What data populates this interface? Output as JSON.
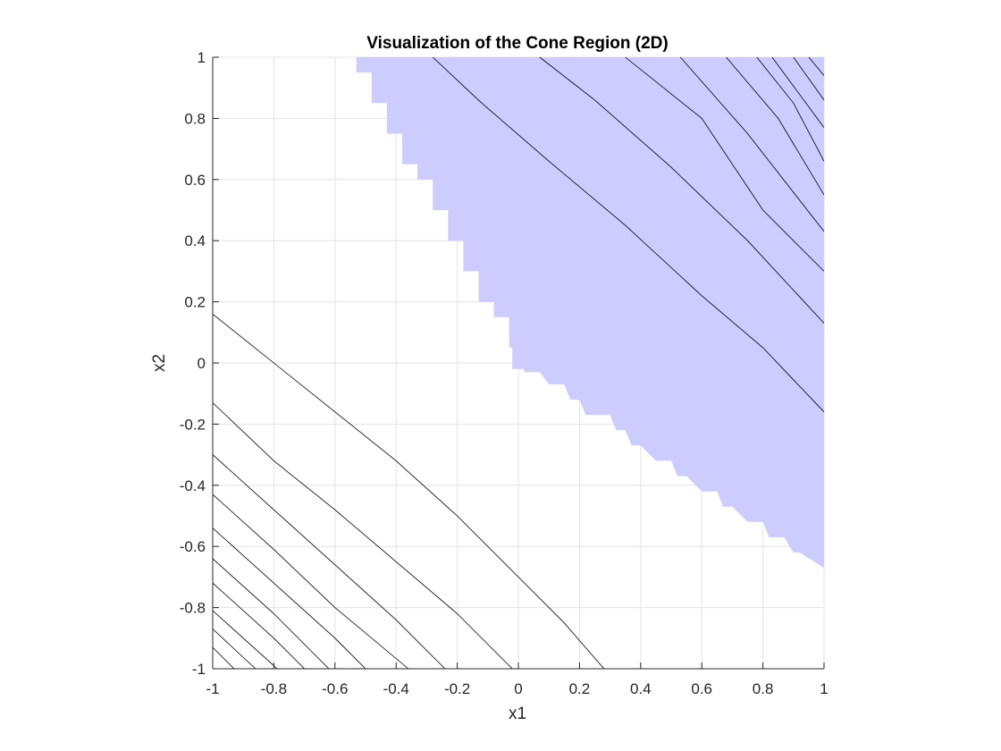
{
  "chart_data": {
    "type": "contour",
    "title": "Visualization of the Cone Region (2D)",
    "xlabel": "x1",
    "ylabel": "x2",
    "xlim": [
      -1,
      1
    ],
    "ylim": [
      -1,
      1
    ],
    "xticks": [
      -1,
      -0.8,
      -0.6,
      -0.4,
      -0.2,
      0,
      0.2,
      0.4,
      0.6,
      0.8,
      1
    ],
    "yticks": [
      -1,
      -0.8,
      -0.6,
      -0.4,
      -0.2,
      0,
      0.2,
      0.4,
      0.6,
      0.8,
      1
    ],
    "xtick_labels": [
      "-1",
      "-0.8",
      "-0.6",
      "-0.4",
      "-0.2",
      "0",
      "0.2",
      "0.4",
      "0.6",
      "0.8",
      "1"
    ],
    "ytick_labels": [
      "-1",
      "-0.8",
      "-0.6",
      "-0.4",
      "-0.2",
      "0",
      "0.2",
      "0.4",
      "0.6",
      "0.8",
      "1"
    ],
    "grid": true,
    "region_color": "#ccccff",
    "line_color": "#000000",
    "region_boundary": [
      [
        -0.53,
        1
      ],
      [
        -0.53,
        0.95
      ],
      [
        -0.48,
        0.95
      ],
      [
        -0.48,
        0.85
      ],
      [
        -0.43,
        0.85
      ],
      [
        -0.43,
        0.75
      ],
      [
        -0.38,
        0.75
      ],
      [
        -0.38,
        0.65
      ],
      [
        -0.33,
        0.65
      ],
      [
        -0.33,
        0.6
      ],
      [
        -0.28,
        0.6
      ],
      [
        -0.28,
        0.5
      ],
      [
        -0.23,
        0.5
      ],
      [
        -0.23,
        0.4
      ],
      [
        -0.18,
        0.4
      ],
      [
        -0.18,
        0.3
      ],
      [
        -0.13,
        0.3
      ],
      [
        -0.13,
        0.2
      ],
      [
        -0.08,
        0.2
      ],
      [
        -0.08,
        0.15
      ],
      [
        -0.03,
        0.15
      ],
      [
        -0.03,
        0.05
      ],
      [
        -0.02,
        0.05
      ],
      [
        -0.02,
        -0.02
      ],
      [
        0.02,
        -0.02
      ],
      [
        0.02,
        -0.03
      ],
      [
        0.07,
        -0.03
      ],
      [
        0.1,
        -0.07
      ],
      [
        0.15,
        -0.07
      ],
      [
        0.17,
        -0.12
      ],
      [
        0.2,
        -0.12
      ],
      [
        0.22,
        -0.17
      ],
      [
        0.3,
        -0.17
      ],
      [
        0.32,
        -0.22
      ],
      [
        0.35,
        -0.22
      ],
      [
        0.37,
        -0.27
      ],
      [
        0.4,
        -0.27
      ],
      [
        0.45,
        -0.32
      ],
      [
        0.5,
        -0.32
      ],
      [
        0.52,
        -0.37
      ],
      [
        0.55,
        -0.37
      ],
      [
        0.6,
        -0.42
      ],
      [
        0.65,
        -0.42
      ],
      [
        0.67,
        -0.47
      ],
      [
        0.7,
        -0.47
      ],
      [
        0.75,
        -0.52
      ],
      [
        0.8,
        -0.52
      ],
      [
        0.82,
        -0.57
      ],
      [
        0.87,
        -0.57
      ],
      [
        0.9,
        -0.62
      ],
      [
        0.92,
        -0.62
      ],
      [
        1,
        -0.67
      ],
      [
        1,
        1
      ]
    ],
    "contour_lines": [
      [
        [
          -0.28,
          1
        ],
        [
          -0.12,
          0.85
        ],
        [
          0.1,
          0.66
        ],
        [
          0.35,
          0.45
        ],
        [
          0.6,
          0.22
        ],
        [
          0.8,
          0.05
        ],
        [
          1,
          -0.16
        ]
      ],
      [
        [
          0.07,
          1
        ],
        [
          0.25,
          0.86
        ],
        [
          0.5,
          0.64
        ],
        [
          0.75,
          0.4
        ],
        [
          1,
          0.13
        ]
      ],
      [
        [
          0.35,
          1
        ],
        [
          0.6,
          0.8
        ],
        [
          0.8,
          0.5
        ],
        [
          1,
          0.3
        ]
      ],
      [
        [
          0.53,
          1
        ],
        [
          0.75,
          0.75
        ],
        [
          1,
          0.43
        ]
      ],
      [
        [
          0.68,
          1
        ],
        [
          0.85,
          0.8
        ],
        [
          1,
          0.55
        ]
      ],
      [
        [
          0.78,
          1
        ],
        [
          0.9,
          0.85
        ],
        [
          1,
          0.66
        ]
      ],
      [
        [
          0.83,
          1
        ],
        [
          1,
          0.77
        ]
      ],
      [
        [
          0.9,
          1
        ],
        [
          1,
          0.86
        ]
      ],
      [
        [
          0.95,
          1
        ],
        [
          1,
          0.94
        ]
      ],
      [
        [
          -1,
          0.16
        ],
        [
          -0.8,
          0.0
        ],
        [
          -0.6,
          -0.16
        ],
        [
          -0.4,
          -0.32
        ],
        [
          -0.2,
          -0.5
        ],
        [
          0,
          -0.7
        ],
        [
          0.15,
          -0.85
        ],
        [
          0.28,
          -1
        ]
      ],
      [
        [
          -1,
          -0.13
        ],
        [
          -0.8,
          -0.32
        ],
        [
          -0.6,
          -0.48
        ],
        [
          -0.4,
          -0.65
        ],
        [
          -0.2,
          -0.82
        ],
        [
          -0.02,
          -1
        ]
      ],
      [
        [
          -1,
          -0.3
        ],
        [
          -0.8,
          -0.48
        ],
        [
          -0.6,
          -0.66
        ],
        [
          -0.4,
          -0.84
        ],
        [
          -0.24,
          -1
        ]
      ],
      [
        [
          -1,
          -0.43
        ],
        [
          -0.8,
          -0.61
        ],
        [
          -0.6,
          -0.8
        ],
        [
          -0.36,
          -1
        ]
      ],
      [
        [
          -1,
          -0.54
        ],
        [
          -0.8,
          -0.72
        ],
        [
          -0.6,
          -0.9
        ],
        [
          -0.5,
          -1
        ]
      ],
      [
        [
          -1,
          -0.64
        ],
        [
          -0.8,
          -0.82
        ],
        [
          -0.62,
          -1
        ]
      ],
      [
        [
          -1,
          -0.72
        ],
        [
          -0.8,
          -0.9
        ],
        [
          -0.7,
          -1
        ]
      ],
      [
        [
          -1,
          -0.81
        ],
        [
          -0.8,
          -0.99
        ],
        [
          -0.79,
          -1
        ]
      ],
      [
        [
          -1,
          -0.87
        ],
        [
          -0.86,
          -1
        ]
      ],
      [
        [
          -1,
          -0.93
        ],
        [
          -0.93,
          -1
        ]
      ],
      [
        [
          -0.98,
          -1
        ],
        [
          -0.93,
          -1
        ]
      ]
    ]
  }
}
